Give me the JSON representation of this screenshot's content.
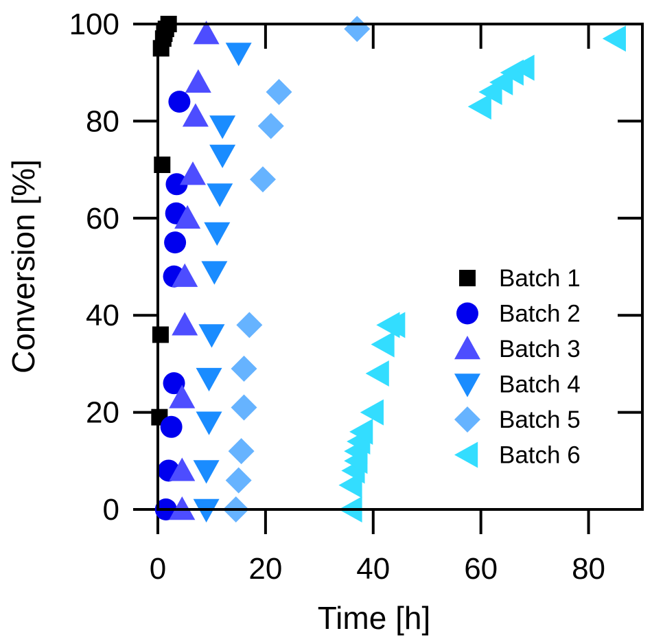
{
  "chart_data": {
    "type": "scatter",
    "xlabel": "Time [h]",
    "ylabel": "Conversion [%]",
    "xlim": [
      0,
      90
    ],
    "ylim": [
      0,
      100
    ],
    "xticks": [
      0,
      20,
      40,
      60,
      80
    ],
    "yticks": [
      0,
      20,
      40,
      60,
      80,
      100
    ],
    "legend_position": "right",
    "series": [
      {
        "name": "Batch 1",
        "marker": "square",
        "color": "#000000",
        "x": [
          0.3,
          0.5,
          0.8,
          0.6,
          1.0,
          1.2,
          1.5,
          2.0
        ],
        "y": [
          19,
          36,
          71,
          95,
          97,
          98,
          99,
          100
        ]
      },
      {
        "name": "Batch 2",
        "marker": "circle",
        "color": "#0000ee",
        "x": [
          1.5,
          2.0,
          2.5,
          3.0,
          3.0,
          3.2,
          3.4,
          3.5,
          4.0
        ],
        "y": [
          0,
          8,
          17,
          26,
          48,
          55,
          61,
          67,
          84
        ]
      },
      {
        "name": "Batch 3",
        "marker": "triangle-up",
        "color": "#4d4dff",
        "x": [
          4.5,
          4.5,
          4.5,
          5.0,
          5.0,
          5.5,
          6.5,
          7.0,
          7.5,
          9.0
        ],
        "y": [
          0,
          8,
          23,
          38,
          48,
          60,
          69,
          81,
          88,
          98
        ]
      },
      {
        "name": "Batch 4",
        "marker": "triangle-down",
        "color": "#1a8cff",
        "x": [
          9.0,
          9.0,
          9.5,
          9.5,
          10.0,
          10.5,
          11.0,
          11.5,
          12.0,
          12.0,
          15.0
        ],
        "y": [
          0,
          8,
          18,
          27,
          36,
          49,
          57,
          65,
          73,
          79,
          94
        ]
      },
      {
        "name": "Batch 5",
        "marker": "diamond",
        "color": "#66b3ff",
        "x": [
          14.5,
          15.0,
          15.5,
          16.0,
          16.0,
          17.0,
          19.5,
          21.0,
          22.5,
          37.0
        ],
        "y": [
          0,
          6,
          12,
          21,
          29,
          38,
          68,
          79,
          86,
          99
        ]
      },
      {
        "name": "Batch 6",
        "marker": "triangle-left",
        "color": "#33ddff",
        "x": [
          36.0,
          36.0,
          36.5,
          37.0,
          37.0,
          37.5,
          38.0,
          40.0,
          41.0,
          42.0,
          43.0,
          44.0,
          60.0,
          62.0,
          64.0,
          66.0,
          68.0,
          85.0
        ],
        "y": [
          0,
          5,
          8,
          10,
          12,
          14,
          16,
          20,
          28,
          34,
          38,
          38,
          83,
          86,
          88,
          90,
          91,
          97
        ]
      }
    ]
  }
}
